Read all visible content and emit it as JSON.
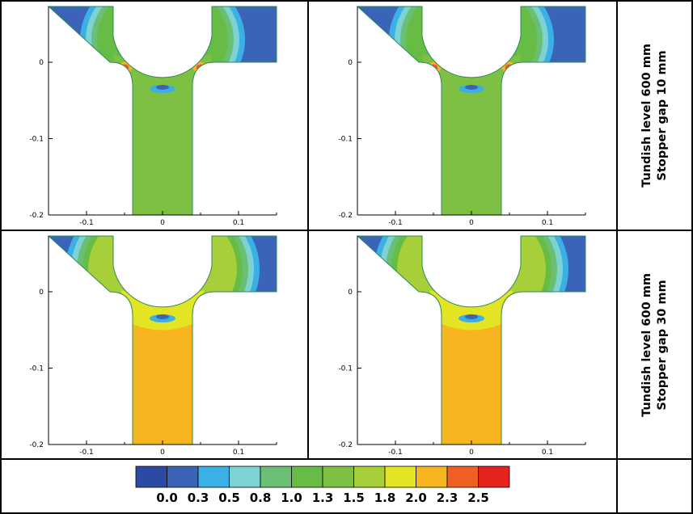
{
  "palette": {
    "levels": [
      "0.0",
      "0.3",
      "0.5",
      "0.8",
      "1.0",
      "1.3",
      "1.5",
      "1.8",
      "2.0",
      "2.3",
      "2.5"
    ],
    "colors": [
      "#2b4aa3",
      "#3b63b8",
      "#3ab0e6",
      "#7dd3d3",
      "#6bbf74",
      "#67bc45",
      "#7dc043",
      "#a7cf3a",
      "#e3e424",
      "#f7b51f",
      "#f05f23",
      "#e4231f"
    ],
    "outline": "#2e8b57"
  },
  "row_labels": [
    {
      "line1": "Tundish level 600 mm",
      "line2": "Stopper gap 10 mm"
    },
    {
      "line1": "Tundish level 600 mm",
      "line2": "Stopper gap 30 mm"
    }
  ],
  "chart_data": [
    {
      "type": "heatmap",
      "stopper_gap_mm": 10,
      "tundish_level_mm": 600,
      "x_ticks": [
        "-0.1",
        "0",
        "0.1"
      ],
      "y_ticks": [
        "0",
        "-0.1",
        "-0.2"
      ],
      "xlim": [
        -0.15,
        0.15
      ],
      "ylim": [
        -0.2,
        0.07
      ],
      "nozzle_core_value": 1.3,
      "tundish_value": 0.0,
      "gap_peak_value": 2.5
    },
    {
      "type": "heatmap",
      "stopper_gap_mm": 10,
      "tundish_level_mm": 600,
      "x_ticks": [
        "-0.1",
        "0",
        "0.1"
      ],
      "y_ticks": [
        "0",
        "-0.1",
        "-0.2"
      ],
      "xlim": [
        -0.15,
        0.15
      ],
      "ylim": [
        -0.2,
        0.07
      ],
      "nozzle_core_value": 1.3,
      "tundish_value": 0.0,
      "gap_peak_value": 2.5
    },
    {
      "type": "heatmap",
      "stopper_gap_mm": 30,
      "tundish_level_mm": 600,
      "x_ticks": [
        "-0.1",
        "0",
        "0.1"
      ],
      "y_ticks": [
        "0",
        "-0.1",
        "-0.2"
      ],
      "xlim": [
        -0.15,
        0.15
      ],
      "ylim": [
        -0.2,
        0.07
      ],
      "nozzle_core_value": 2.0,
      "tundish_value": 0.0,
      "gap_peak_value": 1.8
    },
    {
      "type": "heatmap",
      "stopper_gap_mm": 30,
      "tundish_level_mm": 600,
      "x_ticks": [
        "-0.1",
        "0",
        "0.1"
      ],
      "y_ticks": [
        "0",
        "-0.1",
        "-0.2"
      ],
      "xlim": [
        -0.15,
        0.15
      ],
      "ylim": [
        -0.2,
        0.07
      ],
      "nozzle_core_value": 2.0,
      "tundish_value": 0.0,
      "gap_peak_value": 1.8
    }
  ]
}
